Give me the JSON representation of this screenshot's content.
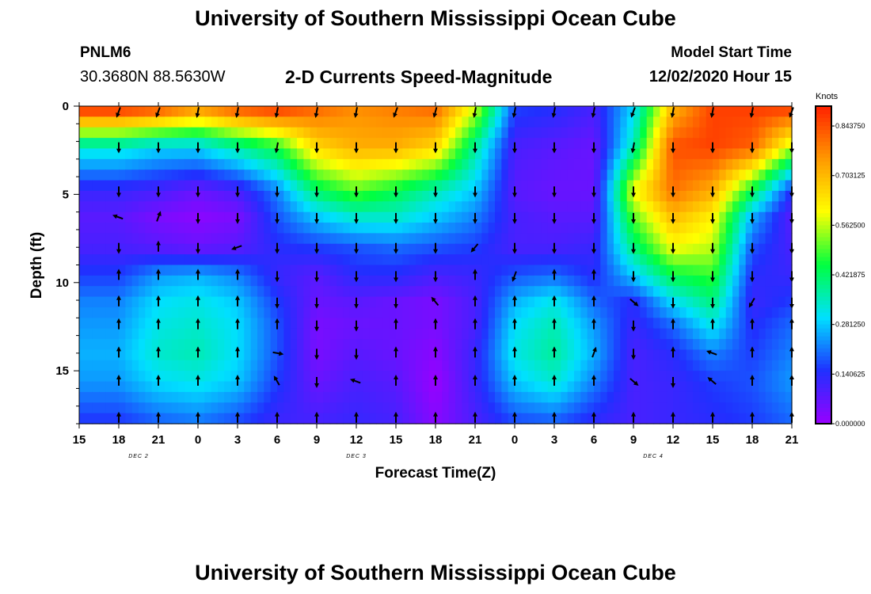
{
  "header": {
    "title": "University of Southern Mississippi Ocean Cube",
    "station_id": "PNLM6",
    "station_coords": "30.3680N 88.5630W",
    "model_start_label": "Model Start Time",
    "model_start_value": "12/02/2020 Hour 15"
  },
  "footer": {
    "title": "University of Southern Mississippi Ocean Cube"
  },
  "chart_data": {
    "type": "heatmap",
    "title": "2-D Currents Speed-Magnitude",
    "xlabel": "Forecast Time(Z)",
    "ylabel": "Depth (ft)",
    "x_tick_labels": [
      "15",
      "18",
      "21",
      "0",
      "3",
      "6",
      "9",
      "12",
      "15",
      "18",
      "21",
      "0",
      "3",
      "6",
      "9",
      "12",
      "15",
      "18",
      "21"
    ],
    "x_range_hours": [
      0,
      54
    ],
    "day_labels": [
      {
        "label": "DEC 2",
        "hour": 4.5
      },
      {
        "label": "DEC 3",
        "hour": 21
      },
      {
        "label": "DEC 4",
        "hour": 43.5
      }
    ],
    "y_ticks": [
      0,
      5,
      10,
      15
    ],
    "y_range": [
      0,
      18
    ],
    "colorbar": {
      "unit": "Knots",
      "min": 0,
      "max": 0.9,
      "tick_labels": [
        "0.000000",
        "0.140625",
        "0.281250",
        "0.421875",
        "0.562500",
        "0.703125",
        "0.843750"
      ],
      "tick_values": [
        0.0,
        0.140625,
        0.28125,
        0.421875,
        0.5625,
        0.703125,
        0.84375
      ]
    },
    "colors": [
      "#9900ff",
      "#2030ff",
      "#00e0ff",
      "#00ff40",
      "#ffff00",
      "#ff9900",
      "#ff2000"
    ],
    "vector_rows_ft": [
      0.3,
      2.3,
      4.8,
      6.3,
      8.0,
      9.6,
      11.1,
      12.4,
      14.0,
      15.6,
      17.7
    ],
    "vector_cols_hours": [
      3,
      6,
      9,
      12,
      15,
      18,
      21,
      24,
      27,
      30,
      33,
      36,
      39,
      42,
      45,
      48,
      51,
      54
    ],
    "speed_knots": [
      [
        0.84,
        0.8,
        0.72,
        0.8,
        0.84,
        0.8,
        0.76,
        0.78,
        0.8,
        0.56,
        0.16,
        0.14,
        0.1,
        0.3,
        0.72,
        0.86,
        0.86,
        0.84
      ],
      [
        0.34,
        0.3,
        0.3,
        0.38,
        0.46,
        0.66,
        0.72,
        0.72,
        0.66,
        0.38,
        0.1,
        0.08,
        0.06,
        0.36,
        0.84,
        0.86,
        0.82,
        0.56
      ],
      [
        0.12,
        0.1,
        0.06,
        0.1,
        0.22,
        0.42,
        0.5,
        0.44,
        0.36,
        0.28,
        0.08,
        0.06,
        0.06,
        0.6,
        0.8,
        0.72,
        0.44,
        0.14
      ],
      [
        0.08,
        0.04,
        0.02,
        0.04,
        0.18,
        0.28,
        0.34,
        0.34,
        0.28,
        0.22,
        0.1,
        0.08,
        0.08,
        0.5,
        0.7,
        0.62,
        0.26,
        0.08
      ],
      [
        0.1,
        0.08,
        0.06,
        0.08,
        0.14,
        0.16,
        0.18,
        0.2,
        0.18,
        0.16,
        0.1,
        0.1,
        0.12,
        0.4,
        0.6,
        0.56,
        0.18,
        0.1
      ],
      [
        0.16,
        0.24,
        0.26,
        0.22,
        0.12,
        0.08,
        0.14,
        0.14,
        0.1,
        0.12,
        0.18,
        0.2,
        0.14,
        0.28,
        0.44,
        0.48,
        0.14,
        0.12
      ],
      [
        0.22,
        0.3,
        0.32,
        0.28,
        0.16,
        0.06,
        0.08,
        0.06,
        0.04,
        0.1,
        0.26,
        0.32,
        0.2,
        0.14,
        0.3,
        0.4,
        0.12,
        0.16
      ],
      [
        0.24,
        0.32,
        0.34,
        0.3,
        0.18,
        0.04,
        0.06,
        0.06,
        0.04,
        0.1,
        0.3,
        0.36,
        0.24,
        0.12,
        0.2,
        0.32,
        0.14,
        0.2
      ],
      [
        0.26,
        0.34,
        0.36,
        0.3,
        0.18,
        0.04,
        0.08,
        0.06,
        0.02,
        0.12,
        0.32,
        0.38,
        0.26,
        0.1,
        0.14,
        0.22,
        0.16,
        0.22
      ],
      [
        0.24,
        0.3,
        0.32,
        0.28,
        0.16,
        0.06,
        0.1,
        0.08,
        0.0,
        0.12,
        0.28,
        0.34,
        0.22,
        0.1,
        0.12,
        0.16,
        0.18,
        0.24
      ],
      [
        0.16,
        0.2,
        0.22,
        0.18,
        0.12,
        0.1,
        0.12,
        0.1,
        0.02,
        0.1,
        0.18,
        0.2,
        0.14,
        0.1,
        0.12,
        0.14,
        0.16,
        0.2
      ]
    ],
    "direction_deg": [
      [
        200,
        200,
        190,
        190,
        190,
        190,
        190,
        200,
        195,
        190,
        190,
        190,
        190,
        200,
        190,
        190,
        190,
        200
      ],
      [
        180,
        180,
        180,
        180,
        190,
        180,
        180,
        180,
        180,
        180,
        180,
        180,
        180,
        190,
        180,
        180,
        180,
        180
      ],
      [
        180,
        180,
        180,
        180,
        180,
        180,
        180,
        180,
        180,
        180,
        180,
        180,
        180,
        180,
        180,
        180,
        180,
        180
      ],
      [
        290,
        20,
        180,
        180,
        180,
        180,
        180,
        180,
        180,
        180,
        180,
        180,
        180,
        180,
        180,
        180,
        180,
        180
      ],
      [
        180,
        0,
        180,
        250,
        180,
        180,
        180,
        180,
        180,
        220,
        180,
        180,
        180,
        180,
        180,
        180,
        180,
        180
      ],
      [
        0,
        0,
        0,
        0,
        180,
        180,
        180,
        180,
        180,
        0,
        200,
        0,
        0,
        180,
        180,
        180,
        180,
        180
      ],
      [
        0,
        0,
        0,
        0,
        180,
        180,
        180,
        180,
        320,
        0,
        0,
        0,
        0,
        130,
        180,
        180,
        210,
        180
      ],
      [
        0,
        0,
        0,
        0,
        0,
        180,
        180,
        0,
        0,
        0,
        0,
        0,
        0,
        180,
        0,
        0,
        0,
        0
      ],
      [
        0,
        0,
        0,
        0,
        100,
        180,
        180,
        0,
        0,
        0,
        0,
        0,
        20,
        180,
        0,
        290,
        0,
        0
      ],
      [
        0,
        0,
        0,
        0,
        330,
        180,
        290,
        0,
        0,
        0,
        0,
        0,
        0,
        130,
        180,
        310,
        0,
        0
      ],
      [
        0,
        0,
        0,
        0,
        0,
        0,
        0,
        0,
        0,
        0,
        0,
        0,
        0,
        0,
        0,
        0,
        0,
        0
      ]
    ]
  }
}
